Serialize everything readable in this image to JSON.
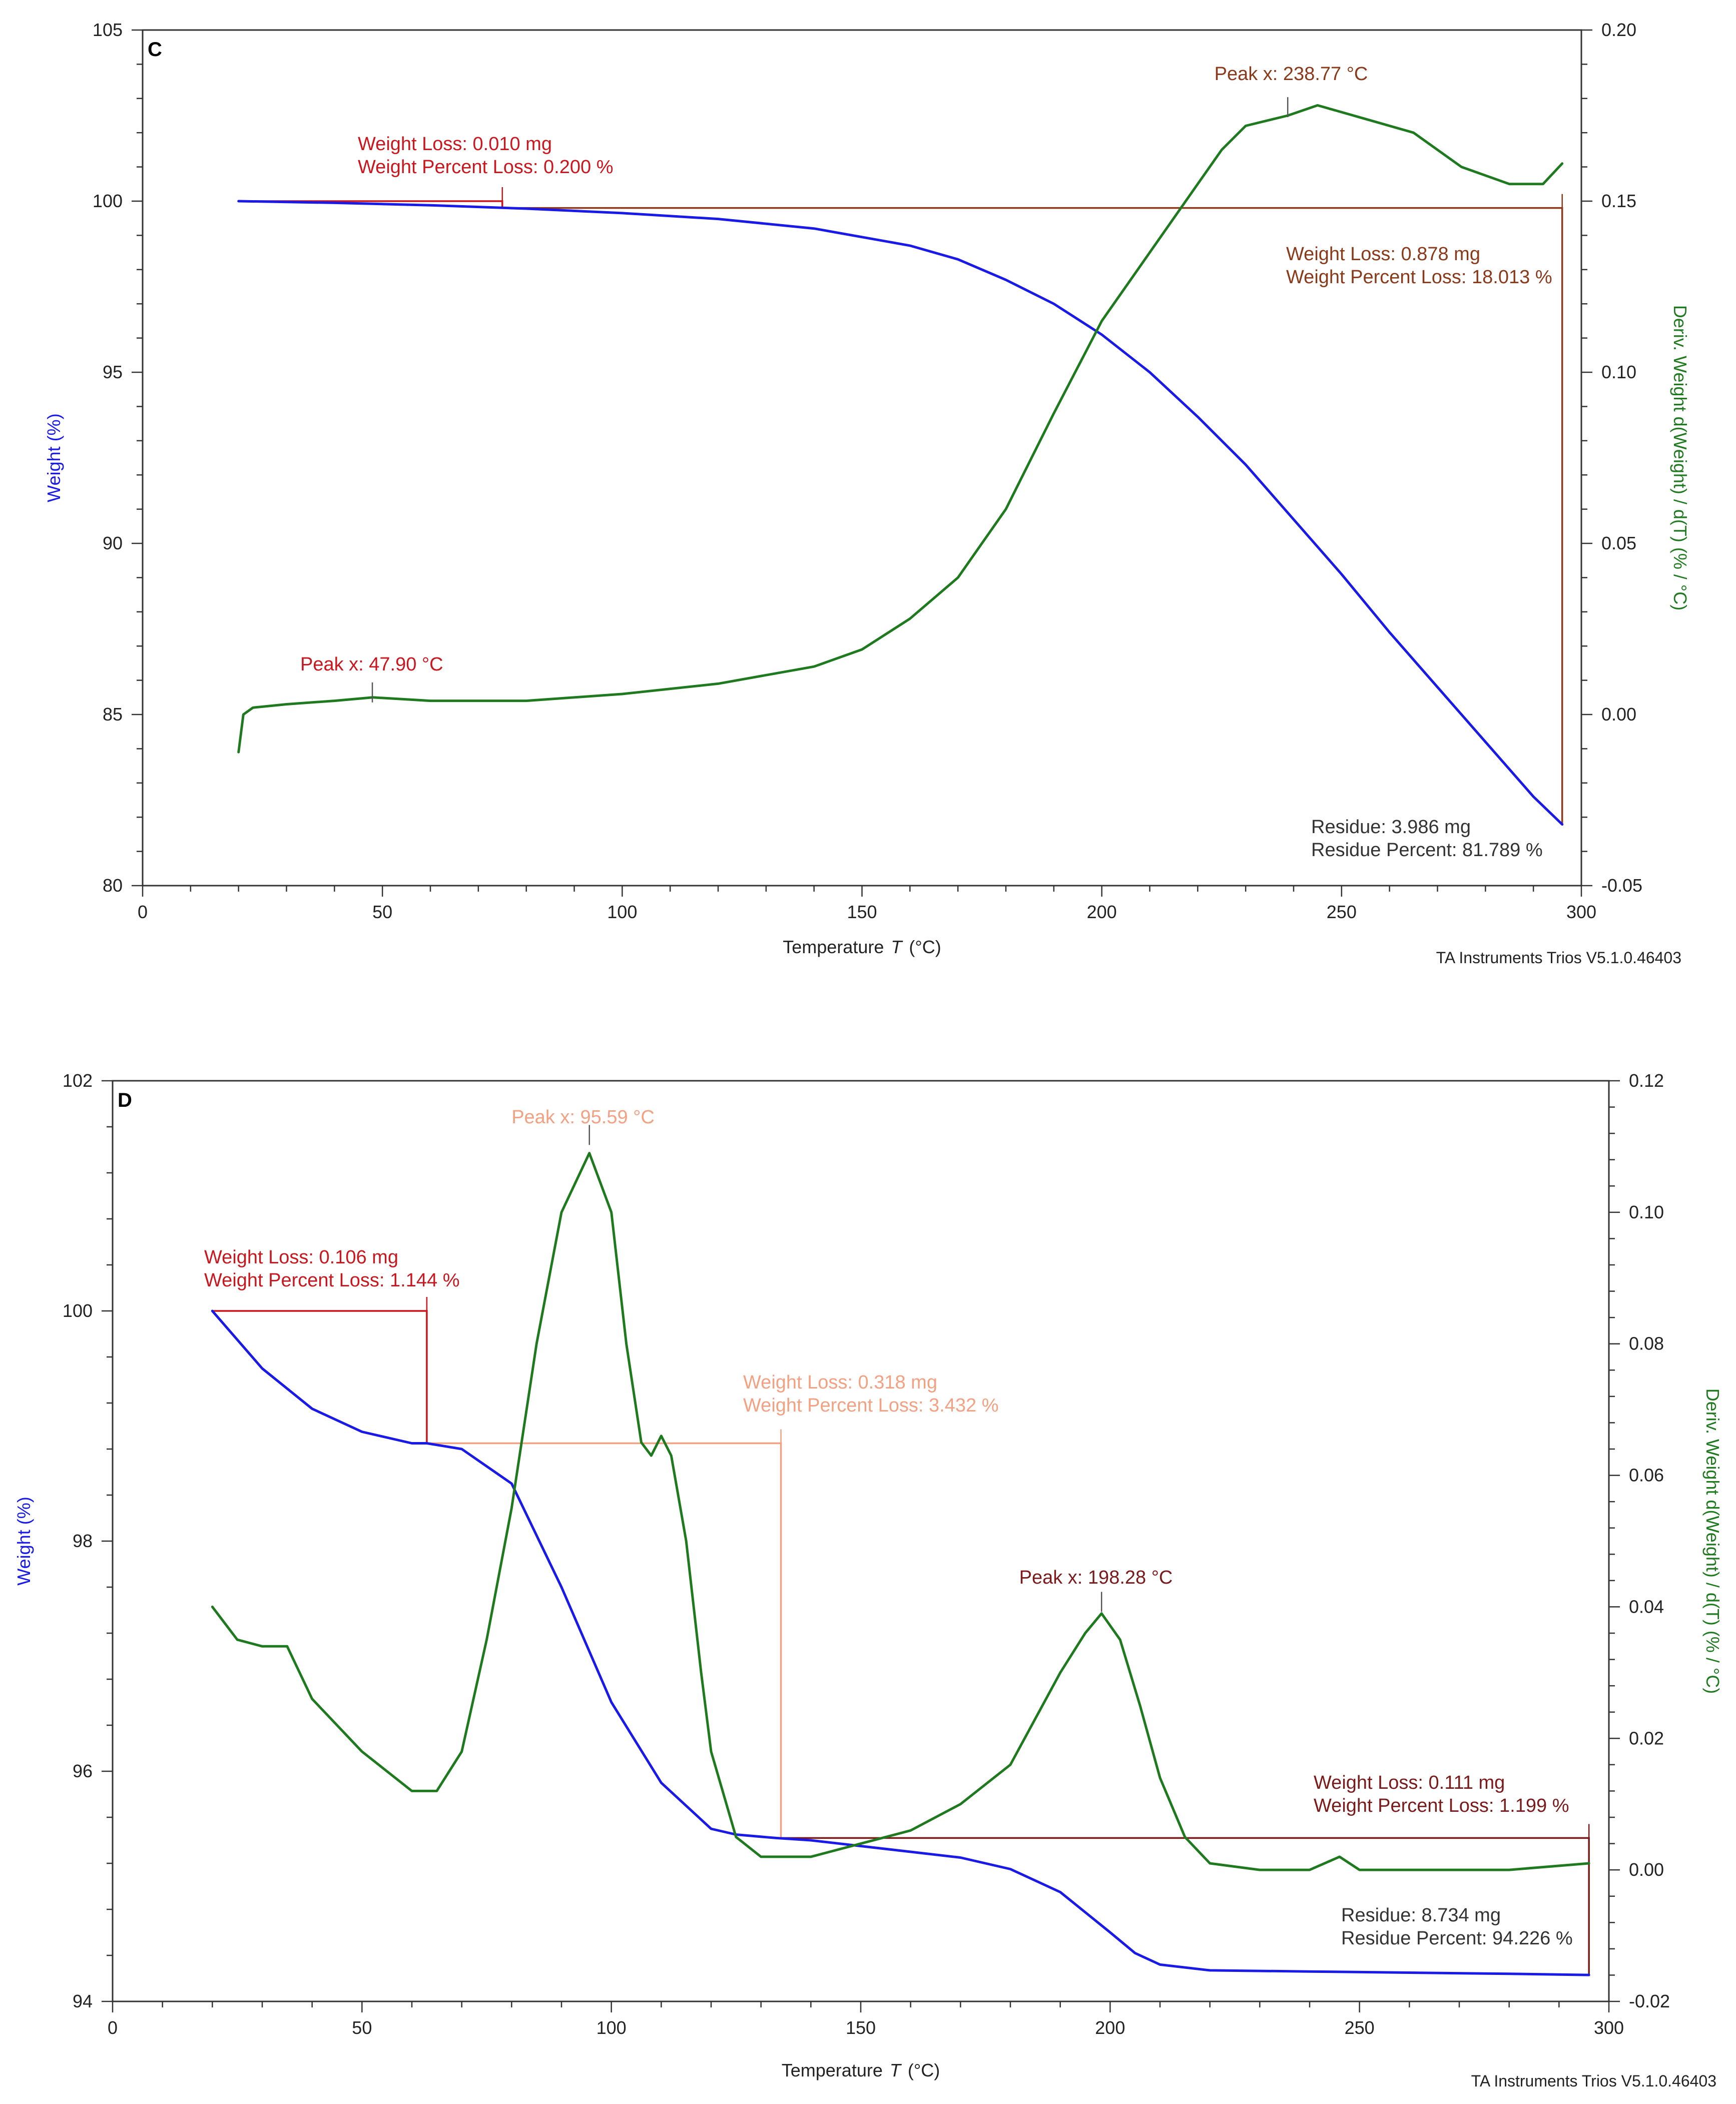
{
  "colors": {
    "weight": "#1a1ae6",
    "deriv": "#1f7a1f",
    "red": "#c8171e",
    "brown": "#8a3a1a",
    "salmon": "#f2a183",
    "darkred": "#7a1a1a",
    "axis": "#333333"
  },
  "chart_data": [
    {
      "type": "line",
      "panel": "C",
      "xlabel_main": "Temperature",
      "xlabel_sym": "T",
      "xlabel_unit": "(°C)",
      "ylabel_left": "Weight (%)",
      "ylabel_right": "Deriv. Weight d(Weight) / d(T) (% / °C)",
      "footer": "TA Instruments Trios V5.1.0.46403",
      "xlim": [
        0,
        300
      ],
      "ylim_left": [
        80,
        105
      ],
      "ylim_right": [
        -0.05,
        0.2
      ],
      "xticks": [
        0,
        50,
        100,
        150,
        200,
        250,
        300
      ],
      "yticks_left": [
        80,
        85,
        90,
        95,
        100,
        105
      ],
      "yticks_right": [
        -0.05,
        0,
        0.05,
        0.1,
        0.15,
        0.2
      ],
      "series": [
        {
          "name": "Weight",
          "axis": "left",
          "color_key": "weight",
          "x": [
            20,
            40,
            60,
            80,
            100,
            120,
            140,
            160,
            170,
            180,
            190,
            200,
            210,
            220,
            230,
            240,
            250,
            260,
            270,
            280,
            290,
            296
          ],
          "y": [
            100,
            99.95,
            99.88,
            99.78,
            99.65,
            99.48,
            99.2,
            98.7,
            98.3,
            97.7,
            97.0,
            96.1,
            95.0,
            93.7,
            92.3,
            90.7,
            89.1,
            87.4,
            85.8,
            84.2,
            82.6,
            81.79
          ]
        },
        {
          "name": "Deriv. Weight",
          "axis": "right",
          "color_key": "deriv",
          "x": [
            20,
            21,
            23,
            30,
            40,
            48,
            60,
            80,
            100,
            120,
            140,
            150,
            160,
            170,
            180,
            190,
            200,
            210,
            220,
            225,
            230,
            238.77,
            245,
            255,
            265,
            275,
            285,
            292,
            296
          ],
          "y": [
            -0.011,
            0.0,
            0.002,
            0.003,
            0.004,
            0.005,
            0.004,
            0.004,
            0.006,
            0.009,
            0.014,
            0.019,
            0.028,
            0.04,
            0.06,
            0.088,
            0.115,
            0.135,
            0.155,
            0.165,
            0.172,
            0.175,
            0.178,
            0.174,
            0.17,
            0.16,
            0.155,
            0.155,
            0.161
          ]
        }
      ],
      "annotations": [
        {
          "lines": [
            "Weight Loss: 0.010 mg",
            "Weight Percent Loss: 0.200 %"
          ],
          "color_key": "red"
        },
        {
          "lines": [
            "Peak x: 238.77 °C"
          ],
          "color_key": "brown"
        },
        {
          "lines": [
            "Weight Loss: 0.878 mg",
            "Weight Percent Loss: 18.013 %"
          ],
          "color_key": "brown"
        },
        {
          "lines": [
            "Peak x: 47.90 °C"
          ],
          "color_key": "red"
        },
        {
          "lines": [
            "Residue: 3.986 mg",
            "Residue Percent: 81.789 %"
          ],
          "color_key": "axis"
        }
      ],
      "step_markers": [
        {
          "color_key": "red",
          "x_start": 20,
          "x_end": 75,
          "y_top": 100,
          "y_bottom": 99.8
        },
        {
          "color_key": "brown",
          "x_start": 75,
          "x_end": 296,
          "y_top": 99.8,
          "y_bottom": 81.79
        }
      ],
      "peak_markers": [
        {
          "x": 238.77,
          "value": 0.176,
          "axis": "right",
          "color_key": "brown"
        },
        {
          "x": 47.9,
          "value": 0.005,
          "axis": "right",
          "color_key": "red"
        }
      ]
    },
    {
      "type": "line",
      "panel": "D",
      "xlabel_main": "Temperature",
      "xlabel_sym": "T",
      "xlabel_unit": "(°C)",
      "ylabel_left": "Weight (%)",
      "ylabel_right": "Deriv. Weight d(Weight) / d(T) (% / °C)",
      "footer": "TA Instruments Trios V5.1.0.46403",
      "xlim": [
        0,
        300
      ],
      "ylim_left": [
        94,
        102
      ],
      "ylim_right": [
        -0.02,
        0.12
      ],
      "xticks": [
        0,
        50,
        100,
        150,
        200,
        250,
        300
      ],
      "yticks_left": [
        94,
        96,
        98,
        100,
        102
      ],
      "yticks_right": [
        -0.02,
        0,
        0.02,
        0.04,
        0.06,
        0.08,
        0.1,
        0.12
      ],
      "series": [
        {
          "name": "Weight",
          "axis": "left",
          "color_key": "weight",
          "x": [
            20,
            30,
            40,
            50,
            60,
            63,
            70,
            80,
            90,
            100,
            110,
            120,
            125,
            133,
            140,
            150,
            160,
            170,
            180,
            190,
            200,
            205,
            210,
            220,
            240,
            260,
            280,
            296
          ],
          "y": [
            100,
            99.5,
            99.15,
            98.95,
            98.85,
            98.85,
            98.8,
            98.5,
            97.6,
            96.6,
            95.9,
            95.5,
            95.45,
            95.42,
            95.4,
            95.35,
            95.3,
            95.25,
            95.15,
            94.95,
            94.6,
            94.42,
            94.32,
            94.27,
            94.26,
            94.25,
            94.24,
            94.23
          ]
        },
        {
          "name": "Deriv. Weight",
          "axis": "right",
          "color_key": "deriv",
          "x": [
            20,
            22,
            25,
            30,
            35,
            40,
            50,
            60,
            65,
            70,
            75,
            80,
            85,
            90,
            95.59,
            100,
            103,
            106,
            108,
            110,
            112,
            115,
            118,
            120,
            125,
            130,
            135,
            140,
            150,
            160,
            170,
            180,
            190,
            195,
            198.28,
            202,
            206,
            210,
            215,
            220,
            230,
            240,
            246,
            250,
            260,
            280,
            296
          ],
          "y": [
            0.04,
            0.038,
            0.035,
            0.034,
            0.034,
            0.026,
            0.018,
            0.012,
            0.012,
            0.018,
            0.035,
            0.055,
            0.08,
            0.1,
            0.109,
            0.1,
            0.08,
            0.065,
            0.063,
            0.066,
            0.063,
            0.05,
            0.03,
            0.018,
            0.005,
            0.002,
            0.002,
            0.002,
            0.004,
            0.006,
            0.01,
            0.016,
            0.03,
            0.036,
            0.039,
            0.035,
            0.025,
            0.014,
            0.005,
            0.001,
            0.0,
            0.0,
            0.002,
            0.0,
            0.0,
            0.0,
            0.001
          ]
        }
      ],
      "annotations": [
        {
          "lines": [
            "Weight Loss: 0.106 mg",
            "Weight Percent Loss: 1.144 %"
          ],
          "color_key": "red"
        },
        {
          "lines": [
            "Peak x: 95.59 °C"
          ],
          "color_key": "salmon"
        },
        {
          "lines": [
            "Weight Loss: 0.318 mg",
            "Weight Percent Loss: 3.432 %"
          ],
          "color_key": "salmon"
        },
        {
          "lines": [
            "Peak x: 198.28 °C"
          ],
          "color_key": "darkred"
        },
        {
          "lines": [
            "Weight Loss: 0.111 mg",
            "Weight Percent Loss: 1.199 %"
          ],
          "color_key": "darkred"
        },
        {
          "lines": [
            "Residue: 8.734 mg",
            "Residue Percent: 94.226 %"
          ],
          "color_key": "axis"
        }
      ],
      "step_markers": [
        {
          "color_key": "red",
          "x_start": 20,
          "x_end": 63,
          "y_top": 100,
          "y_bottom": 98.85
        },
        {
          "color_key": "salmon",
          "x_start": 63,
          "x_end": 134,
          "y_top": 98.85,
          "y_bottom": 95.42
        },
        {
          "color_key": "darkred",
          "x_start": 134,
          "x_end": 296,
          "y_top": 95.42,
          "y_bottom": 94.23
        }
      ],
      "peak_markers": [
        {
          "x": 95.59,
          "value": 0.111,
          "axis": "right",
          "color_key": "salmon"
        },
        {
          "x": 198.28,
          "value": 0.04,
          "axis": "right",
          "color_key": "darkred"
        }
      ]
    }
  ]
}
